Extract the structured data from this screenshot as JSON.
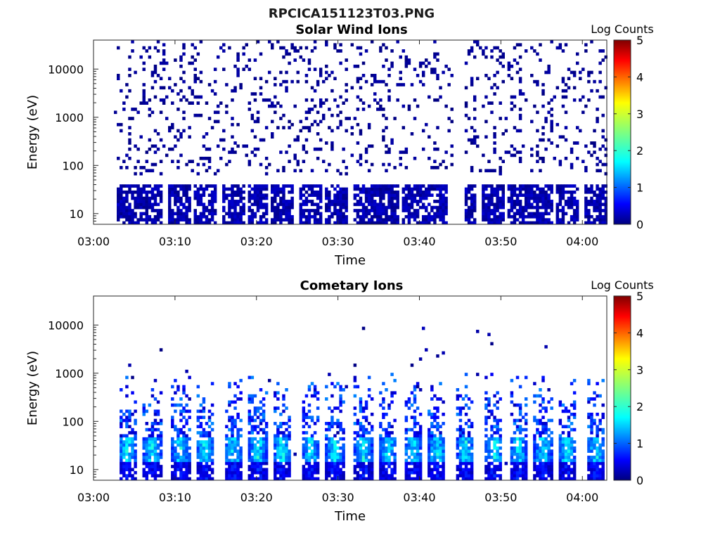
{
  "figure": {
    "title": "RPCICA151123T03.PNG"
  },
  "chart_data": [
    {
      "type": "heatmap",
      "title": "Solar Wind Ions",
      "xlabel": "Time",
      "ylabel": "Energy (eV)",
      "x_ticks": [
        "03:00",
        "03:10",
        "03:20",
        "03:30",
        "03:40",
        "03:50",
        "04:00"
      ],
      "xlim": [
        "03:00",
        "04:03"
      ],
      "y_scale": "log",
      "y_ticks": [
        "10",
        "100",
        "1000",
        "10000"
      ],
      "ylim": [
        6,
        40000
      ],
      "colorbar": {
        "label": "Log Counts",
        "ticks": [
          "0",
          "1",
          "2",
          "3",
          "4",
          "5"
        ],
        "range": [
          0,
          5
        ],
        "colormap": "jet"
      },
      "description_of_values": "sparse low counts (log ~0-0.3) scattered 30 eV-30 keV, denser blocks below ~40 eV pulsing every ~3 min",
      "pulse_centers_min": [
        4,
        7,
        10.5,
        13.5,
        17,
        20,
        23,
        26.5,
        29.5,
        33,
        36,
        39,
        42,
        45.5,
        49,
        52,
        55,
        58,
        61.5
      ],
      "data_gap_min": [
        44,
        45.5
      ],
      "data_start_min": 2.5,
      "data_end_min": 63
    },
    {
      "type": "heatmap",
      "title": "Cometary Ions",
      "xlabel": "Time",
      "ylabel": "Energy (eV)",
      "x_ticks": [
        "03:00",
        "03:10",
        "03:20",
        "03:30",
        "03:40",
        "03:50",
        "04:00"
      ],
      "xlim": [
        "03:00",
        "04:03"
      ],
      "y_scale": "log",
      "y_ticks": [
        "10",
        "100",
        "1000",
        "10000"
      ],
      "ylim": [
        6,
        40000
      ],
      "colorbar": {
        "label": "Log Counts",
        "ticks": [
          "0",
          "1",
          "2",
          "3",
          "4",
          "5"
        ],
        "range": [
          0,
          5
        ],
        "colormap": "jet"
      },
      "description_of_values": "pulsed plumes every ~3 min; peak log counts ~2-2.5 near 15-40 eV, tails up to ~1 keV, isolated counts up to ~20 keV",
      "pulse_centers_min": [
        4,
        7,
        10.5,
        13.5,
        17,
        20,
        23,
        26.5,
        29.5,
        33,
        36,
        39,
        42,
        45.5,
        49,
        52,
        55,
        58,
        61.5
      ],
      "data_start_min": 2.5,
      "data_end_min": 63
    }
  ]
}
